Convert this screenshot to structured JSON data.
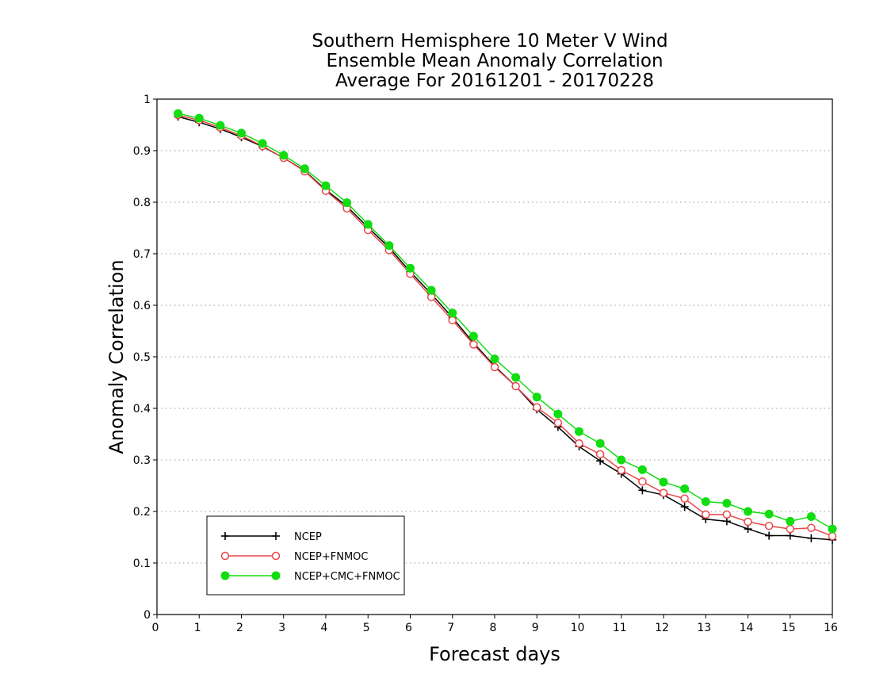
{
  "chart_data": {
    "type": "line",
    "title_lines": [
      "Southern Hemisphere 10 Meter V Wind",
      "Ensemble Mean Anomaly Correlation",
      "Average For 20161201 - 20170228"
    ],
    "xlabel": "Forecast days",
    "ylabel": "Anomaly Correlation",
    "xlim": [
      0,
      16
    ],
    "ylim": [
      0,
      1
    ],
    "x_ticks": [
      "0",
      "1",
      "2",
      "3",
      "4",
      "5",
      "6",
      "7",
      "8",
      "9",
      "10",
      "11",
      "12",
      "13",
      "14",
      "15",
      "16"
    ],
    "y_ticks": [
      "0",
      "0.1",
      "0.2",
      "0.3",
      "0.4",
      "0.5",
      "0.6",
      "0.7",
      "0.8",
      "0.9",
      "1"
    ],
    "grid": "horizontal dotted",
    "legend_position": "bottom-left",
    "x": [
      0.5,
      1,
      1.5,
      2,
      2.5,
      3,
      3.5,
      4,
      4.5,
      5,
      5.5,
      6,
      6.5,
      7,
      7.5,
      8,
      8.5,
      9,
      9.5,
      10,
      10.5,
      11,
      11.5,
      12,
      12.5,
      13,
      13.5,
      14,
      14.5,
      15,
      15.5,
      16
    ],
    "series": [
      {
        "name": "NCEP",
        "color": "#000000",
        "marker": "plus",
        "values": [
          0.966,
          0.955,
          0.942,
          0.926,
          0.908,
          0.886,
          0.861,
          0.824,
          0.792,
          0.751,
          0.712,
          0.665,
          0.622,
          0.576,
          0.527,
          0.482,
          0.443,
          0.398,
          0.364,
          0.326,
          0.298,
          0.273,
          0.241,
          0.232,
          0.209,
          0.185,
          0.181,
          0.166,
          0.153,
          0.153,
          0.148,
          0.145
        ]
      },
      {
        "name": "NCEP+FNMOC",
        "color": "#e8474a",
        "marker": "open-circle",
        "values": [
          0.969,
          0.959,
          0.945,
          0.929,
          0.909,
          0.886,
          0.86,
          0.822,
          0.788,
          0.746,
          0.707,
          0.661,
          0.616,
          0.571,
          0.524,
          0.48,
          0.443,
          0.402,
          0.372,
          0.332,
          0.311,
          0.28,
          0.258,
          0.236,
          0.225,
          0.194,
          0.194,
          0.18,
          0.172,
          0.166,
          0.168,
          0.152
        ]
      },
      {
        "name": "NCEP+CMC+FNMOC",
        "color": "#11dd11",
        "marker": "filled-circle",
        "values": [
          0.972,
          0.963,
          0.949,
          0.934,
          0.914,
          0.891,
          0.865,
          0.832,
          0.799,
          0.757,
          0.716,
          0.672,
          0.629,
          0.585,
          0.54,
          0.496,
          0.46,
          0.422,
          0.389,
          0.355,
          0.332,
          0.3,
          0.281,
          0.257,
          0.244,
          0.219,
          0.216,
          0.2,
          0.195,
          0.181,
          0.19,
          0.166
        ]
      }
    ]
  }
}
